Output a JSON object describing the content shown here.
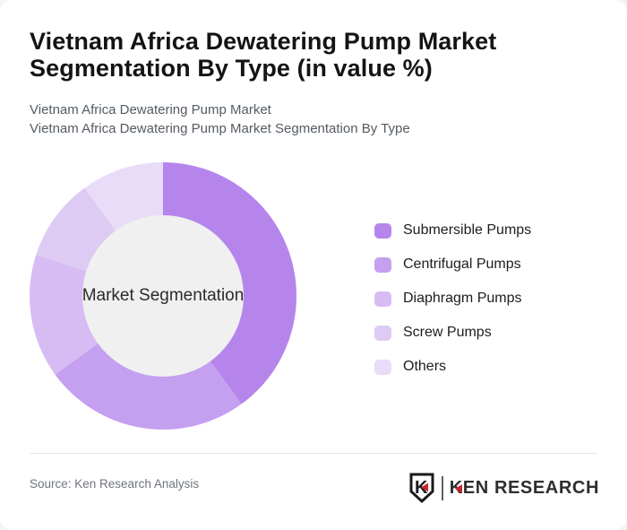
{
  "header": {
    "title_lines": [
      "Vietnam Africa Dewatering Pump Market",
      "Segmentation By Type (in value %)"
    ],
    "subtitle_lines": [
      "Vietnam Africa Dewatering Pump Market",
      "Vietnam Africa Dewatering Pump Market Segmentation By Type"
    ]
  },
  "chart_data": {
    "type": "pie",
    "donut": true,
    "title": "Vietnam Africa Dewatering Pump Market Segmentation By Type (in value %)",
    "unit": "value %",
    "center_label": "Market Segmentation",
    "start_angle_deg": 0,
    "direction": "clockwise",
    "legend_position": "right",
    "inner_circle_color": "#f0f0f1",
    "segments": [
      {
        "label": "Submersible Pumps",
        "value": 40,
        "color": "#b685ec"
      },
      {
        "label": "Centrifugal Pumps",
        "value": 25,
        "color": "#c59ff0"
      },
      {
        "label": "Diaphragm Pumps",
        "value": 15,
        "color": "#d7bcf3"
      },
      {
        "label": "Screw Pumps",
        "value": 10,
        "color": "#ddcbf4"
      },
      {
        "label": "Others",
        "value": 10,
        "color": "#e8dcf8"
      }
    ]
  },
  "footer": {
    "source_label": "Source: Ken Research Analysis",
    "brand_text": "KEN RESEARCH",
    "brand_emblem_letter": "K",
    "brand_accent_color": "#c9252b"
  }
}
